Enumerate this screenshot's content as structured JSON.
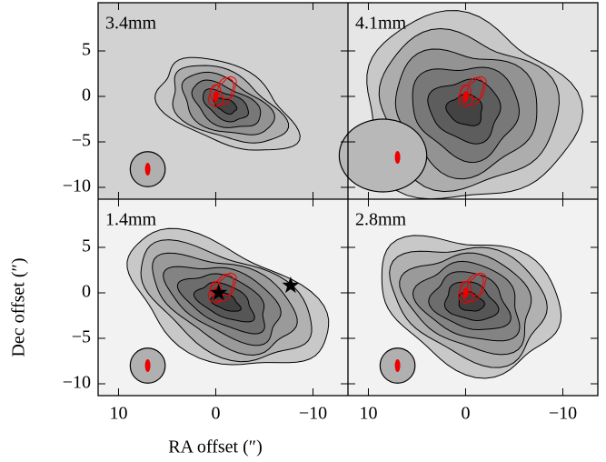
{
  "chart_data": {
    "type": "image-grid",
    "xlabel": "RA offset (″)",
    "ylabel": "Dec offset (″)",
    "xlim": [
      12.1,
      -13.6
    ],
    "ylim": [
      -11.3,
      10.3
    ],
    "xticks": [
      10,
      0,
      {
        "value": -10,
        "label": "−10"
      }
    ],
    "yticks": [
      5,
      0,
      {
        "value": -5,
        "label": "−5"
      },
      {
        "value": -10,
        "label": "−10"
      }
    ],
    "panels": [
      {
        "title": "3.4mm"
      },
      {
        "title": "4.1mm"
      },
      {
        "title": "1.4mm"
      },
      {
        "title": "2.8mm"
      }
    ]
  }
}
